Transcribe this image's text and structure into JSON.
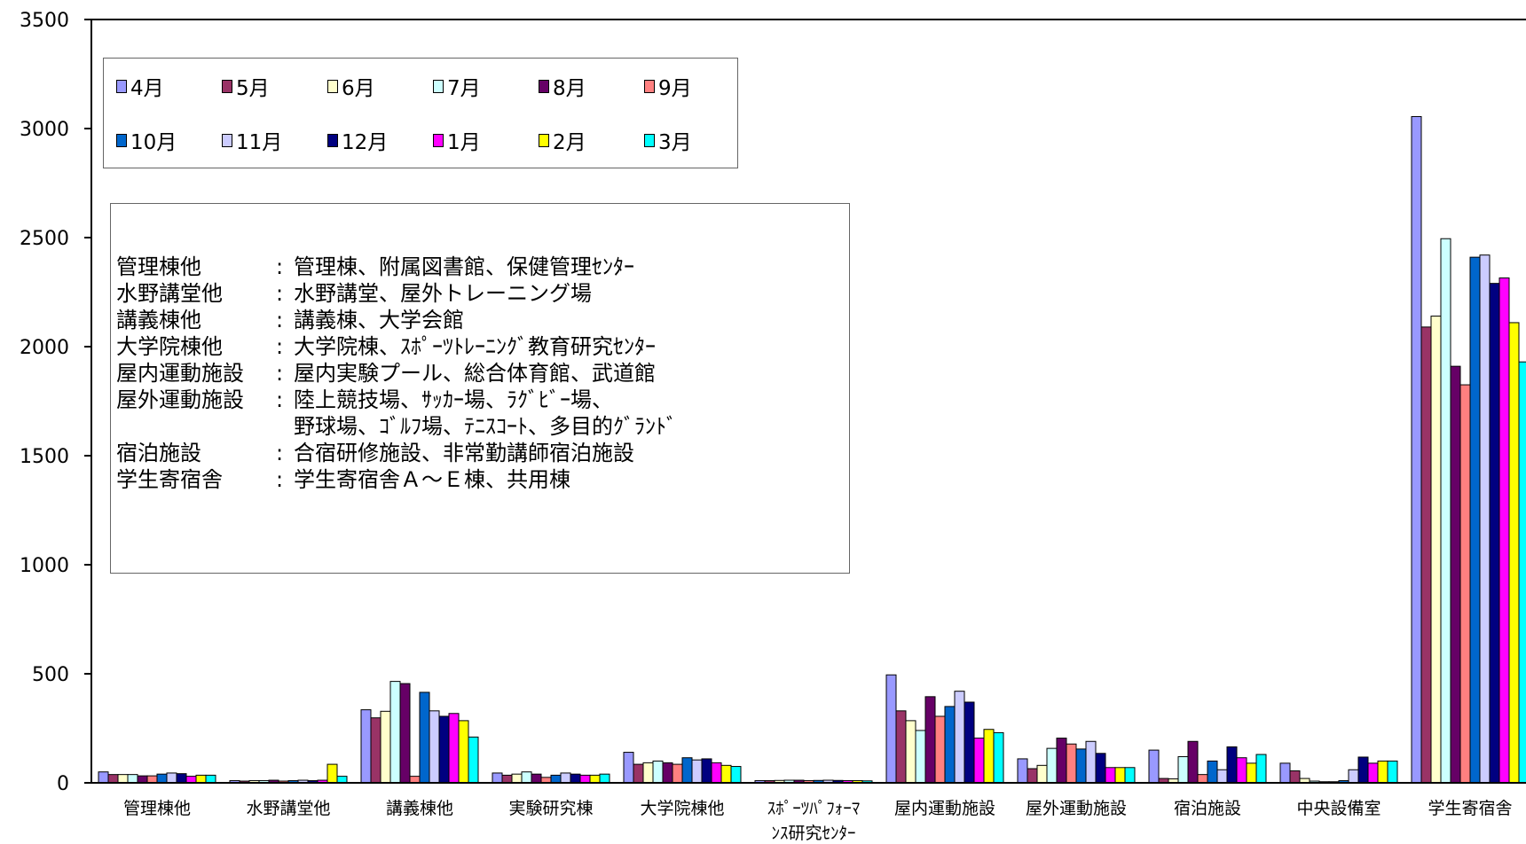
{
  "chart_data": {
    "type": "bar",
    "categories": [
      "管理棟他",
      "水野講堂他",
      "講義棟他",
      "実験研究棟",
      "大学院棟他",
      "ｽﾎﾟｰﾂﾊﾟﾌｫｰﾏﾝｽ研究ｾﾝﾀｰ",
      "屋内運動施設",
      "屋外運動施設",
      "宿泊施設",
      "中央設備室",
      "学生寄宿舎"
    ],
    "category_lines": [
      [
        "管理棟他"
      ],
      [
        "水野講堂他"
      ],
      [
        "講義棟他"
      ],
      [
        "実験研究棟"
      ],
      [
        "大学院棟他"
      ],
      [
        "ｽﾎﾟｰﾂﾊﾟﾌｫｰﾏ",
        "ﾝｽ研究ｾﾝﾀｰ"
      ],
      [
        "屋内運動施設"
      ],
      [
        "屋外運動施設"
      ],
      [
        "宿泊施設"
      ],
      [
        "中央設備室"
      ],
      [
        "学生寄宿舎"
      ]
    ],
    "ylim": [
      0,
      3500
    ],
    "yticks": [
      0,
      500,
      1000,
      1500,
      2000,
      2500,
      3000,
      3500
    ],
    "legend_position": "top-left",
    "grid": false,
    "series": [
      {
        "name": "4月",
        "color": "#9999ff",
        "values": [
          50,
          10,
          335,
          45,
          140,
          10,
          495,
          110,
          150,
          90,
          3055
        ]
      },
      {
        "name": "5月",
        "color": "#993366",
        "values": [
          38,
          8,
          298,
          35,
          85,
          10,
          330,
          65,
          20,
          55,
          2090
        ]
      },
      {
        "name": "6月",
        "color": "#ffffcc",
        "values": [
          38,
          10,
          328,
          40,
          92,
          11,
          285,
          80,
          18,
          20,
          2140
        ]
      },
      {
        "name": "7月",
        "color": "#ccffff",
        "values": [
          38,
          10,
          465,
          50,
          100,
          12,
          240,
          158,
          120,
          8,
          2495
        ]
      },
      {
        "name": "8月",
        "color": "#660066",
        "values": [
          32,
          12,
          455,
          40,
          92,
          12,
          395,
          205,
          190,
          5,
          1910
        ]
      },
      {
        "name": "9月",
        "color": "#ff8080",
        "values": [
          32,
          8,
          30,
          25,
          85,
          10,
          305,
          178,
          38,
          5,
          1825
        ]
      },
      {
        "name": "10月",
        "color": "#0066cc",
        "values": [
          40,
          10,
          415,
          35,
          115,
          11,
          350,
          155,
          100,
          10,
          2410
        ]
      },
      {
        "name": "11月",
        "color": "#ccccff",
        "values": [
          45,
          12,
          330,
          45,
          105,
          12,
          420,
          190,
          60,
          60,
          2420
        ]
      },
      {
        "name": "12月",
        "color": "#000080",
        "values": [
          42,
          10,
          305,
          40,
          110,
          11,
          370,
          135,
          165,
          118,
          2290
        ]
      },
      {
        "name": "1月",
        "color": "#ff00ff",
        "values": [
          30,
          12,
          318,
          35,
          92,
          10,
          205,
          70,
          115,
          90,
          2315
        ]
      },
      {
        "name": "2月",
        "color": "#ffff00",
        "values": [
          35,
          85,
          285,
          35,
          80,
          10,
          245,
          70,
          90,
          100,
          2110
        ]
      },
      {
        "name": "3月",
        "color": "#00ffff",
        "values": [
          35,
          30,
          210,
          40,
          75,
          9,
          230,
          70,
          130,
          100,
          1930
        ]
      }
    ],
    "legend_rows": [
      [
        "4月",
        "5月",
        "6月",
        "7月",
        "8月",
        "9月"
      ],
      [
        "10月",
        "11月",
        "12月",
        "1月",
        "2月",
        "3月"
      ]
    ],
    "annotation": [
      {
        "key": "管理棟他",
        "value": "管理棟、附属図書館、保健管理ｾﾝﾀｰ"
      },
      {
        "key": "水野講堂他",
        "value": "水野講堂、屋外トレーニング場"
      },
      {
        "key": "講義棟他",
        "value": "講義棟、大学会館"
      },
      {
        "key": "大学院棟他",
        "value": "大学院棟、ｽﾎﾟｰﾂﾄﾚｰﾆﾝｸﾞ教育研究ｾﾝﾀｰ"
      },
      {
        "key": "屋内運動施設",
        "value": "屋内実験プール、総合体育館、武道館"
      },
      {
        "key": "屋外運動施設",
        "value": "陸上競技場、ｻｯｶｰ場、ﾗｸﾞﾋﾞｰ場、"
      },
      {
        "key": "",
        "value": "野球場、ｺﾞﾙﾌ場、ﾃﾆｽｺｰﾄ、多目的ｸﾞﾗﾝﾄﾞ"
      },
      {
        "key": "宿泊施設",
        "value": "合宿研修施設、非常勤講師宿泊施設"
      },
      {
        "key": "学生寄宿舎",
        "value": "学生寄宿舎Ａ～Ｅ棟、共用棟"
      }
    ],
    "annotation_colon": ":"
  }
}
